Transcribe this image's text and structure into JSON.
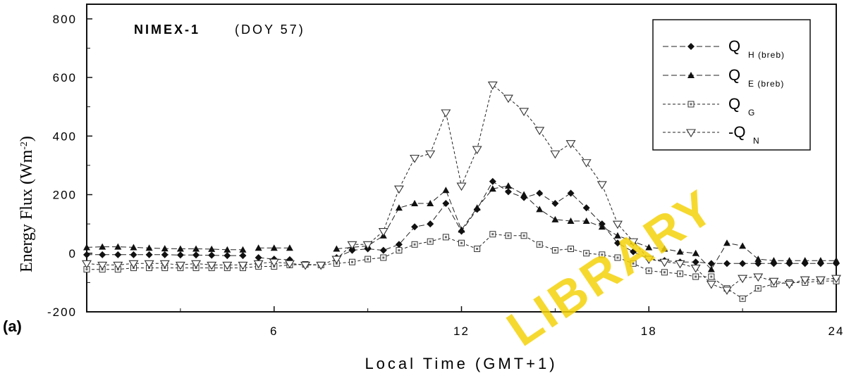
{
  "panel_label": "(a)",
  "watermark": "LIBRARY",
  "chart_data": {
    "type": "line",
    "title": "NIMEX-1",
    "subtitle": "(DOY 57)",
    "xlabel": "Local Time (GMT+1)",
    "ylabel_main": "Energy Flux (Wm",
    "ylabel_sup": "-2",
    "ylabel_end": ")",
    "xlim": [
      0,
      24
    ],
    "ylim": [
      -200,
      850
    ],
    "xticks": [
      6,
      12,
      18,
      24
    ],
    "yticks": [
      -200,
      0,
      200,
      400,
      600,
      800
    ],
    "xtick_labels": [
      "6",
      "12",
      "18",
      "24"
    ],
    "ytick_labels": [
      "-200",
      "0",
      "200",
      "400",
      "600",
      "800"
    ],
    "grid": false,
    "legend_position": "top-right",
    "series": [
      {
        "name": "Q",
        "sub": "H (breb)",
        "marker": "diamond",
        "dash": "8,4",
        "segments": [
          [
            [
              0,
              -5
            ],
            [
              0.5,
              -5
            ],
            [
              1,
              -5
            ],
            [
              1.5,
              -5
            ],
            [
              2,
              -5
            ],
            [
              2.5,
              -5
            ],
            [
              3,
              -6
            ],
            [
              3.5,
              -6
            ],
            [
              4,
              -7
            ],
            [
              4.5,
              -8
            ],
            [
              5,
              -8
            ]
          ],
          [
            [
              5.5,
              -15
            ],
            [
              6,
              -20
            ],
            [
              6.5,
              -22
            ]
          ],
          [
            [
              8,
              -15
            ],
            [
              8.5,
              10
            ],
            [
              9,
              15
            ],
            [
              9.5,
              10
            ],
            [
              10,
              30
            ],
            [
              10.5,
              90
            ],
            [
              11,
              100
            ],
            [
              11.5,
              170
            ],
            [
              12,
              75
            ],
            [
              12.5,
              150
            ],
            [
              13,
              245
            ],
            [
              13.5,
              210
            ],
            [
              14,
              190
            ],
            [
              14.5,
              205
            ],
            [
              15,
              170
            ],
            [
              15.5,
              205
            ],
            [
              16,
              155
            ],
            [
              16.5,
              100
            ],
            [
              17,
              35
            ],
            [
              17.5,
              5
            ],
            [
              18,
              -20
            ],
            [
              18.5,
              -25
            ],
            [
              19,
              -30
            ],
            [
              19.5,
              -30
            ],
            [
              20,
              -35
            ],
            [
              20.5,
              -35
            ],
            [
              21,
              -35
            ],
            [
              21.5,
              -35
            ],
            [
              22,
              -35
            ],
            [
              22.5,
              -35
            ],
            [
              23,
              -35
            ],
            [
              23.5,
              -35
            ],
            [
              24,
              -35
            ]
          ]
        ]
      },
      {
        "name": "Q",
        "sub": "E (breb)",
        "marker": "triangle",
        "dash": "8,4",
        "segments": [
          [
            [
              0,
              20
            ],
            [
              0.5,
              22
            ],
            [
              1,
              22
            ],
            [
              1.5,
              20
            ],
            [
              2,
              18
            ],
            [
              2.5,
              16
            ],
            [
              3,
              15
            ],
            [
              3.5,
              15
            ],
            [
              4,
              14
            ],
            [
              4.5,
              12
            ],
            [
              5,
              12
            ]
          ],
          [
            [
              5.5,
              18
            ],
            [
              6,
              18
            ],
            [
              6.5,
              18
            ]
          ],
          [
            [
              8,
              15
            ],
            [
              8.5,
              20
            ],
            [
              9,
              25
            ],
            [
              9.5,
              60
            ],
            [
              10,
              155
            ],
            [
              10.5,
              170
            ],
            [
              11,
              170
            ],
            [
              11.5,
              215
            ],
            [
              12,
              80
            ],
            [
              12.5,
              155
            ],
            [
              13,
              220
            ],
            [
              13.5,
              230
            ],
            [
              14,
              200
            ],
            [
              14.5,
              150
            ],
            [
              15,
              115
            ],
            [
              15.5,
              110
            ],
            [
              16,
              110
            ],
            [
              16.5,
              90
            ],
            [
              17,
              60
            ],
            [
              17.5,
              40
            ],
            [
              18,
              20
            ],
            [
              18.5,
              15
            ],
            [
              19,
              5
            ],
            [
              19.5,
              0
            ],
            [
              20,
              -55
            ],
            [
              20.5,
              35
            ],
            [
              21,
              25
            ],
            [
              21.5,
              -20
            ],
            [
              22,
              -25
            ],
            [
              22.5,
              -25
            ],
            [
              23,
              -25
            ],
            [
              23.5,
              -25
            ],
            [
              24,
              -25
            ]
          ]
        ]
      },
      {
        "name": "Q",
        "sub": "G",
        "marker": "square",
        "dash": "4,3",
        "segments": [
          [
            [
              0,
              -55
            ],
            [
              0.5,
              -55
            ],
            [
              1,
              -55
            ],
            [
              1.5,
              -50
            ],
            [
              2,
              -50
            ],
            [
              2.5,
              -50
            ],
            [
              3,
              -50
            ],
            [
              3.5,
              -50
            ],
            [
              4,
              -50
            ],
            [
              4.5,
              -50
            ],
            [
              5,
              -50
            ],
            [
              5.5,
              -45
            ],
            [
              6,
              -45
            ],
            [
              6.5,
              -40
            ],
            [
              7,
              -38
            ],
            [
              7.5,
              -40
            ],
            [
              8,
              -35
            ],
            [
              8.5,
              -30
            ],
            [
              9,
              -20
            ],
            [
              9.5,
              -15
            ],
            [
              10,
              10
            ],
            [
              10.5,
              30
            ],
            [
              11,
              40
            ],
            [
              11.5,
              55
            ],
            [
              12,
              35
            ],
            [
              12.5,
              15
            ],
            [
              13,
              65
            ],
            [
              13.5,
              60
            ],
            [
              14,
              60
            ],
            [
              14.5,
              30
            ],
            [
              15,
              10
            ],
            [
              15.5,
              15
            ],
            [
              16,
              0
            ],
            [
              16.5,
              -5
            ],
            [
              17,
              -15
            ],
            [
              17.5,
              -35
            ],
            [
              18,
              -60
            ],
            [
              18.5,
              -65
            ],
            [
              19,
              -70
            ],
            [
              19.5,
              -80
            ],
            [
              20,
              -80
            ],
            [
              20.5,
              -120
            ],
            [
              21,
              -155
            ],
            [
              21.5,
              -120
            ],
            [
              22,
              -105
            ],
            [
              22.5,
              -100
            ],
            [
              23,
              -100
            ],
            [
              23.5,
              -95
            ],
            [
              24,
              -95
            ]
          ]
        ]
      },
      {
        "name": "-Q",
        "sub": "N",
        "marker": "inverted-triangle",
        "dash": "4,3",
        "segments": [
          [
            [
              0,
              -35
            ],
            [
              0.5,
              -40
            ],
            [
              1,
              -40
            ],
            [
              1.5,
              -35
            ],
            [
              2,
              -35
            ],
            [
              2.5,
              -35
            ],
            [
              3,
              -40
            ],
            [
              3.5,
              -35
            ],
            [
              4,
              -40
            ],
            [
              4.5,
              -40
            ],
            [
              5,
              -40
            ],
            [
              5.5,
              -35
            ],
            [
              6,
              -30
            ],
            [
              6.5,
              -35
            ],
            [
              7,
              -40
            ],
            [
              7.5,
              -40
            ],
            [
              8,
              -20
            ],
            [
              8.5,
              30
            ],
            [
              9,
              30
            ],
            [
              9.5,
              75
            ],
            [
              10,
              220
            ],
            [
              10.5,
              325
            ],
            [
              11,
              340
            ],
            [
              11.5,
              480
            ],
            [
              12,
              230
            ],
            [
              12.5,
              355
            ],
            [
              13,
              575
            ],
            [
              13.5,
              530
            ],
            [
              14,
              485
            ],
            [
              14.5,
              420
            ],
            [
              15,
              340
            ],
            [
              15.5,
              375
            ],
            [
              16,
              310
            ],
            [
              16.5,
              235
            ],
            [
              17,
              100
            ],
            [
              17.5,
              40
            ],
            [
              18,
              -20
            ],
            [
              18.5,
              -30
            ],
            [
              19,
              -35
            ],
            [
              19.5,
              -50
            ],
            [
              20,
              -105
            ],
            [
              20.5,
              -125
            ],
            [
              21,
              -85
            ],
            [
              21.5,
              -80
            ],
            [
              22,
              -95
            ],
            [
              22.5,
              -105
            ],
            [
              23,
              -90
            ],
            [
              23.5,
              -90
            ],
            [
              24,
              -85
            ]
          ]
        ]
      }
    ]
  }
}
